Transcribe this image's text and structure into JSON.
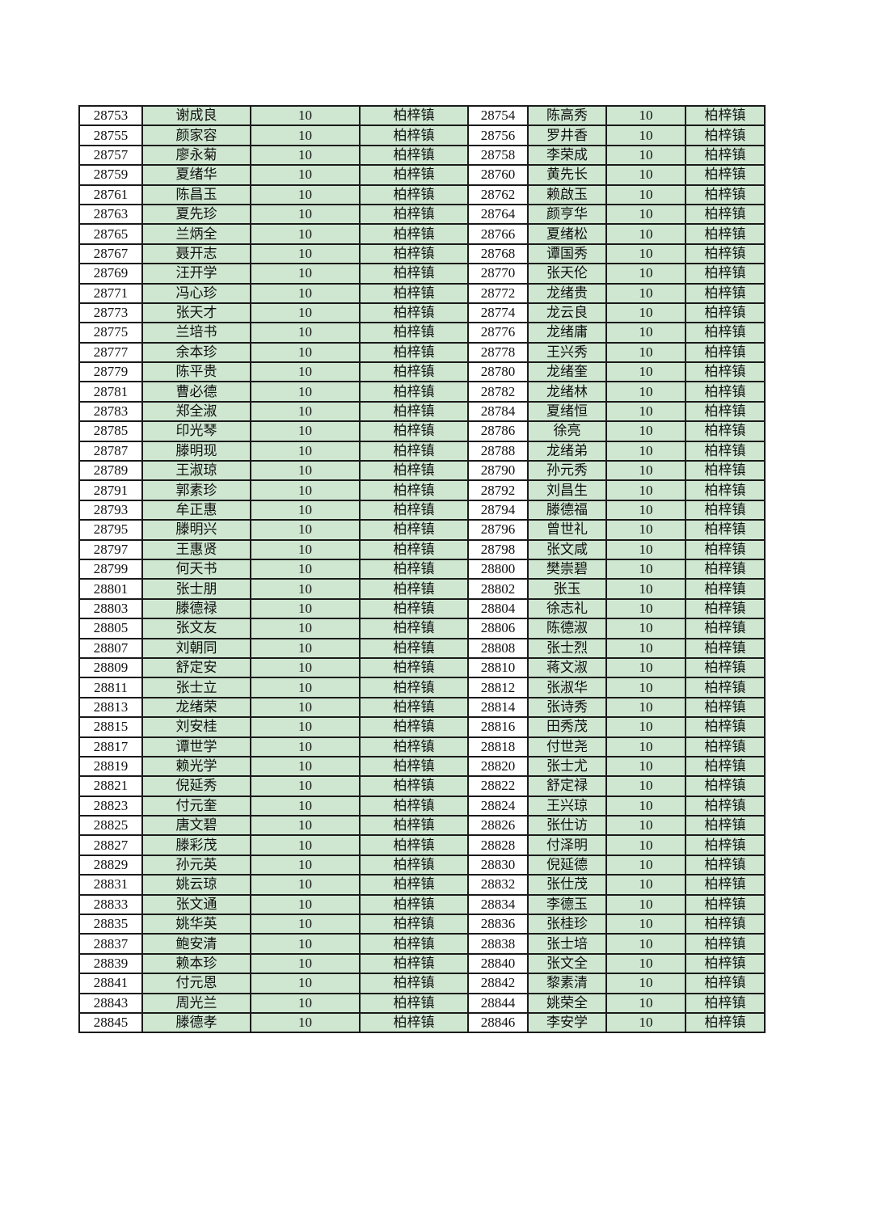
{
  "colors": {
    "cell_fill": "#cfe7d1",
    "id_fill": "#ffffff",
    "border": "#1a1a1a"
  },
  "rows": [
    [
      "28753",
      "谢成良",
      "10",
      "柏梓镇",
      "28754",
      "陈高秀",
      "10",
      "柏梓镇"
    ],
    [
      "28755",
      "颜家容",
      "10",
      "柏梓镇",
      "28756",
      "罗井香",
      "10",
      "柏梓镇"
    ],
    [
      "28757",
      "廖永菊",
      "10",
      "柏梓镇",
      "28758",
      "李荣成",
      "10",
      "柏梓镇"
    ],
    [
      "28759",
      "夏绪华",
      "10",
      "柏梓镇",
      "28760",
      "黄先长",
      "10",
      "柏梓镇"
    ],
    [
      "28761",
      "陈昌玉",
      "10",
      "柏梓镇",
      "28762",
      "赖啟玉",
      "10",
      "柏梓镇"
    ],
    [
      "28763",
      "夏先珍",
      "10",
      "柏梓镇",
      "28764",
      "颜亨华",
      "10",
      "柏梓镇"
    ],
    [
      "28765",
      "兰炳全",
      "10",
      "柏梓镇",
      "28766",
      "夏绪松",
      "10",
      "柏梓镇"
    ],
    [
      "28767",
      "聂开志",
      "10",
      "柏梓镇",
      "28768",
      "谭国秀",
      "10",
      "柏梓镇"
    ],
    [
      "28769",
      "汪开学",
      "10",
      "柏梓镇",
      "28770",
      "张天伦",
      "10",
      "柏梓镇"
    ],
    [
      "28771",
      "冯心珍",
      "10",
      "柏梓镇",
      "28772",
      "龙绪贵",
      "10",
      "柏梓镇"
    ],
    [
      "28773",
      "张天才",
      "10",
      "柏梓镇",
      "28774",
      "龙云良",
      "10",
      "柏梓镇"
    ],
    [
      "28775",
      "兰培书",
      "10",
      "柏梓镇",
      "28776",
      "龙绪庸",
      "10",
      "柏梓镇"
    ],
    [
      "28777",
      "余本珍",
      "10",
      "柏梓镇",
      "28778",
      "王兴秀",
      "10",
      "柏梓镇"
    ],
    [
      "28779",
      "陈平贵",
      "10",
      "柏梓镇",
      "28780",
      "龙绪奎",
      "10",
      "柏梓镇"
    ],
    [
      "28781",
      "曹必德",
      "10",
      "柏梓镇",
      "28782",
      "龙绪林",
      "10",
      "柏梓镇"
    ],
    [
      "28783",
      "郑全淑",
      "10",
      "柏梓镇",
      "28784",
      "夏绪恒",
      "10",
      "柏梓镇"
    ],
    [
      "28785",
      "印光琴",
      "10",
      "柏梓镇",
      "28786",
      "徐亮",
      "10",
      "柏梓镇"
    ],
    [
      "28787",
      "滕明现",
      "10",
      "柏梓镇",
      "28788",
      "龙绪弟",
      "10",
      "柏梓镇"
    ],
    [
      "28789",
      "王淑琼",
      "10",
      "柏梓镇",
      "28790",
      "孙元秀",
      "10",
      "柏梓镇"
    ],
    [
      "28791",
      "郭素珍",
      "10",
      "柏梓镇",
      "28792",
      "刘昌生",
      "10",
      "柏梓镇"
    ],
    [
      "28793",
      "牟正惠",
      "10",
      "柏梓镇",
      "28794",
      "滕德福",
      "10",
      "柏梓镇"
    ],
    [
      "28795",
      "滕明兴",
      "10",
      "柏梓镇",
      "28796",
      "曾世礼",
      "10",
      "柏梓镇"
    ],
    [
      "28797",
      "王惠贤",
      "10",
      "柏梓镇",
      "28798",
      "张文咸",
      "10",
      "柏梓镇"
    ],
    [
      "28799",
      "何天书",
      "10",
      "柏梓镇",
      "28800",
      "樊崇碧",
      "10",
      "柏梓镇"
    ],
    [
      "28801",
      "张士朋",
      "10",
      "柏梓镇",
      "28802",
      "张玉",
      "10",
      "柏梓镇"
    ],
    [
      "28803",
      "滕德禄",
      "10",
      "柏梓镇",
      "28804",
      "徐志礼",
      "10",
      "柏梓镇"
    ],
    [
      "28805",
      "张文友",
      "10",
      "柏梓镇",
      "28806",
      "陈德淑",
      "10",
      "柏梓镇"
    ],
    [
      "28807",
      "刘朝同",
      "10",
      "柏梓镇",
      "28808",
      "张士烈",
      "10",
      "柏梓镇"
    ],
    [
      "28809",
      "舒定安",
      "10",
      "柏梓镇",
      "28810",
      "蒋文淑",
      "10",
      "柏梓镇"
    ],
    [
      "28811",
      "张士立",
      "10",
      "柏梓镇",
      "28812",
      "张淑华",
      "10",
      "柏梓镇"
    ],
    [
      "28813",
      "龙绪荣",
      "10",
      "柏梓镇",
      "28814",
      "张诗秀",
      "10",
      "柏梓镇"
    ],
    [
      "28815",
      "刘安桂",
      "10",
      "柏梓镇",
      "28816",
      "田秀茂",
      "10",
      "柏梓镇"
    ],
    [
      "28817",
      "谭世学",
      "10",
      "柏梓镇",
      "28818",
      "付世尧",
      "10",
      "柏梓镇"
    ],
    [
      "28819",
      "赖光学",
      "10",
      "柏梓镇",
      "28820",
      "张士尤",
      "10",
      "柏梓镇"
    ],
    [
      "28821",
      "倪延秀",
      "10",
      "柏梓镇",
      "28822",
      "舒定禄",
      "10",
      "柏梓镇"
    ],
    [
      "28823",
      "付元奎",
      "10",
      "柏梓镇",
      "28824",
      "王兴琼",
      "10",
      "柏梓镇"
    ],
    [
      "28825",
      "唐文碧",
      "10",
      "柏梓镇",
      "28826",
      "张仕访",
      "10",
      "柏梓镇"
    ],
    [
      "28827",
      "滕彩茂",
      "10",
      "柏梓镇",
      "28828",
      "付泽明",
      "10",
      "柏梓镇"
    ],
    [
      "28829",
      "孙元英",
      "10",
      "柏梓镇",
      "28830",
      "倪延德",
      "10",
      "柏梓镇"
    ],
    [
      "28831",
      "姚云琼",
      "10",
      "柏梓镇",
      "28832",
      "张仕茂",
      "10",
      "柏梓镇"
    ],
    [
      "28833",
      "张文通",
      "10",
      "柏梓镇",
      "28834",
      "李德玉",
      "10",
      "柏梓镇"
    ],
    [
      "28835",
      "姚华英",
      "10",
      "柏梓镇",
      "28836",
      "张桂珍",
      "10",
      "柏梓镇"
    ],
    [
      "28837",
      "鲍安清",
      "10",
      "柏梓镇",
      "28838",
      "张士培",
      "10",
      "柏梓镇"
    ],
    [
      "28839",
      "赖本珍",
      "10",
      "柏梓镇",
      "28840",
      "张文全",
      "10",
      "柏梓镇"
    ],
    [
      "28841",
      "付元恩",
      "10",
      "柏梓镇",
      "28842",
      "黎素清",
      "10",
      "柏梓镇"
    ],
    [
      "28843",
      "周光兰",
      "10",
      "柏梓镇",
      "28844",
      "姚荣全",
      "10",
      "柏梓镇"
    ],
    [
      "28845",
      "滕德孝",
      "10",
      "柏梓镇",
      "28846",
      "李安学",
      "10",
      "柏梓镇"
    ]
  ]
}
